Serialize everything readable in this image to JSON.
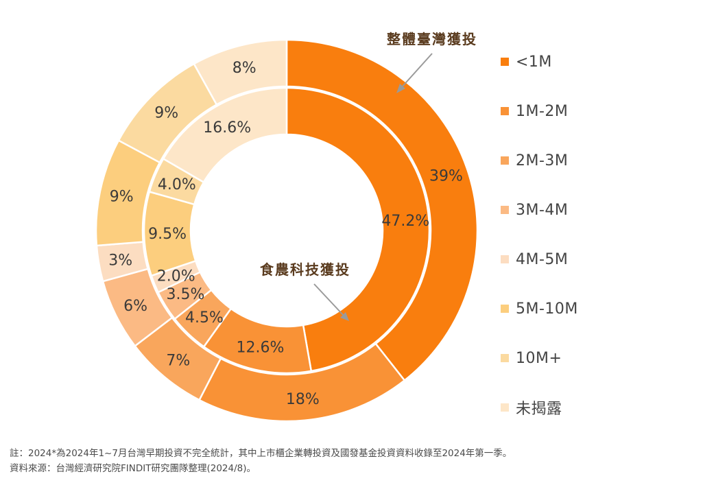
{
  "chart_data": {
    "type": "donut",
    "categories": [
      "<1M",
      "1M-2M",
      "2M-3M",
      "3M-4M",
      "4M-5M",
      "5M-10M",
      "10M+",
      "未揭露"
    ],
    "series": [
      {
        "name": "整體臺灣獲投",
        "ring": "outer",
        "values": [
          39,
          18,
          7,
          6,
          3,
          9,
          9,
          8
        ],
        "labels": [
          "39%",
          "18%",
          "7%",
          "6%",
          "3%",
          "9%",
          "9%",
          "8%"
        ]
      },
      {
        "name": "食農科技獲投",
        "ring": "inner",
        "values": [
          47.2,
          12.6,
          4.5,
          3.5,
          2.0,
          9.5,
          4.0,
          16.6
        ],
        "labels": [
          "47.2%",
          "12.6%",
          "4.5%",
          "3.5%",
          "2.0%",
          "9.5%",
          "4.0%",
          "16.6%"
        ]
      }
    ],
    "colors": [
      "#F97E0E",
      "#F99236",
      "#F9A65C",
      "#FBBA84",
      "#FCDDC1",
      "#FCCE7E",
      "#FBDAA0",
      "#FDE6C8"
    ],
    "legend_position": "right"
  },
  "annotations": {
    "outer": "整體臺灣獲投",
    "inner": "食農科技獲投"
  },
  "notes": {
    "note": "註：2024*為2024年1~7月台灣早期投資不完全統計，其中上市櫃企業轉投資及國發基金投資資料收錄至2024年第一季。",
    "source": "資料來源：台灣經濟研究院FINDIT研究團隊整理(2024/8)。"
  }
}
